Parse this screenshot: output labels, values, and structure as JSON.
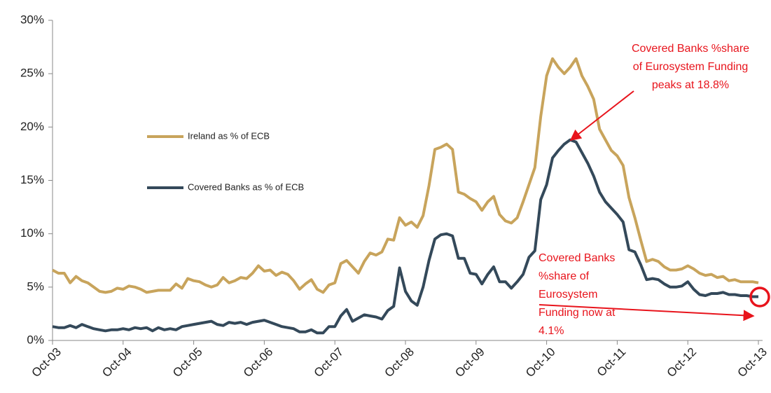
{
  "chart_data": {
    "type": "line",
    "categories": [
      "Oct-03",
      null,
      null,
      null,
      null,
      null,
      null,
      null,
      null,
      null,
      null,
      null,
      "Oct-04",
      null,
      null,
      null,
      null,
      null,
      null,
      null,
      null,
      null,
      null,
      null,
      "Oct-05",
      null,
      null,
      null,
      null,
      null,
      null,
      null,
      null,
      null,
      null,
      null,
      "Oct-06",
      null,
      null,
      null,
      null,
      null,
      null,
      null,
      null,
      null,
      null,
      null,
      "Oct-07",
      null,
      null,
      null,
      null,
      null,
      null,
      null,
      null,
      null,
      null,
      null,
      "Oct-08",
      null,
      null,
      null,
      null,
      null,
      null,
      null,
      null,
      null,
      null,
      null,
      "Oct-09",
      null,
      null,
      null,
      null,
      null,
      null,
      null,
      null,
      null,
      null,
      null,
      "Oct-10",
      null,
      null,
      null,
      null,
      null,
      null,
      null,
      null,
      null,
      null,
      null,
      "Oct-11",
      null,
      null,
      null,
      null,
      null,
      null,
      null,
      null,
      null,
      null,
      null,
      "Oct-12",
      null,
      null,
      null,
      null,
      null,
      null,
      null,
      null,
      null,
      null,
      null,
      "Oct-13"
    ],
    "series": [
      {
        "name": "Ireland as % of ECB",
        "color": "#c8a45c",
        "values": [
          6.6,
          6.3,
          6.3,
          5.4,
          6.0,
          5.6,
          5.4,
          5.0,
          4.6,
          4.5,
          4.6,
          4.9,
          4.8,
          5.1,
          5.0,
          4.8,
          4.5,
          4.6,
          4.7,
          4.7,
          4.7,
          5.3,
          4.9,
          5.8,
          5.6,
          5.5,
          5.2,
          5.0,
          5.2,
          5.9,
          5.4,
          5.6,
          5.9,
          5.8,
          6.3,
          7.0,
          6.5,
          6.6,
          6.1,
          6.4,
          6.2,
          5.6,
          4.8,
          5.3,
          5.7,
          4.8,
          4.5,
          5.2,
          5.4,
          7.2,
          7.5,
          6.9,
          6.3,
          7.4,
          8.2,
          8.0,
          8.3,
          9.5,
          9.4,
          11.5,
          10.8,
          11.1,
          10.6,
          11.7,
          14.5,
          17.9,
          18.1,
          18.4,
          17.9,
          13.9,
          13.7,
          13.3,
          13.0,
          12.2,
          13.0,
          13.5,
          11.8,
          11.2,
          11.0,
          11.5,
          13.0,
          14.6,
          16.2,
          21.0,
          24.8,
          26.4,
          25.6,
          25.0,
          25.6,
          26.4,
          24.8,
          23.8,
          22.6,
          19.8,
          18.8,
          17.8,
          17.3,
          16.4,
          13.4,
          11.5,
          9.4,
          7.4,
          7.6,
          7.4,
          6.9,
          6.6,
          6.6,
          6.7,
          7.0,
          6.7,
          6.3,
          6.1,
          6.2,
          5.9,
          6.0,
          5.6,
          5.7,
          5.5,
          5.5,
          5.5,
          5.4
        ]
      },
      {
        "name": "Covered Banks as % of ECB",
        "color": "#34495a",
        "values": [
          1.3,
          1.2,
          1.2,
          1.4,
          1.2,
          1.5,
          1.3,
          1.1,
          1.0,
          0.9,
          1.0,
          1.0,
          1.1,
          1.0,
          1.2,
          1.1,
          1.2,
          0.9,
          1.2,
          1.0,
          1.1,
          1.0,
          1.3,
          1.4,
          1.5,
          1.6,
          1.7,
          1.8,
          1.5,
          1.4,
          1.7,
          1.6,
          1.7,
          1.5,
          1.7,
          1.8,
          1.9,
          1.7,
          1.5,
          1.3,
          1.2,
          1.1,
          0.8,
          0.8,
          1.0,
          0.7,
          0.7,
          1.3,
          1.3,
          2.3,
          2.9,
          1.8,
          2.1,
          2.4,
          2.3,
          2.2,
          2.0,
          2.8,
          3.2,
          6.8,
          4.6,
          3.7,
          3.3,
          5.0,
          7.5,
          9.5,
          9.9,
          10.0,
          9.8,
          7.7,
          7.7,
          6.3,
          6.2,
          5.3,
          6.2,
          6.9,
          5.5,
          5.5,
          4.9,
          5.5,
          6.2,
          7.8,
          8.4,
          13.2,
          14.6,
          17.1,
          17.8,
          18.4,
          18.8,
          18.6,
          17.6,
          16.6,
          15.4,
          13.9,
          13.0,
          12.4,
          11.8,
          11.1,
          8.5,
          8.3,
          7.1,
          5.7,
          5.8,
          5.7,
          5.3,
          5.0,
          5.0,
          5.1,
          5.5,
          4.8,
          4.3,
          4.2,
          4.4,
          4.4,
          4.5,
          4.3,
          4.3,
          4.2,
          4.2,
          4.1,
          4.1
        ]
      }
    ],
    "ylim": [
      0,
      30
    ],
    "yticks": [
      {
        "value": 0,
        "label": "0%"
      },
      {
        "value": 5,
        "label": "5%"
      },
      {
        "value": 10,
        "label": "10%"
      },
      {
        "value": 15,
        "label": "15%"
      },
      {
        "value": 20,
        "label": "20%"
      },
      {
        "value": 25,
        "label": "25%"
      },
      {
        "value": 30,
        "label": "30%"
      }
    ],
    "annotations": [
      {
        "lines": [
          "Covered Banks %share",
          "of Eurosystem Funding",
          "peaks at 18.8%"
        ],
        "color": "#e8141c"
      },
      {
        "lines": [
          "Covered Banks",
          "%share of",
          "Eurosystem",
          "Funding now at",
          "4.1%"
        ],
        "color": "#e8141c"
      }
    ]
  }
}
